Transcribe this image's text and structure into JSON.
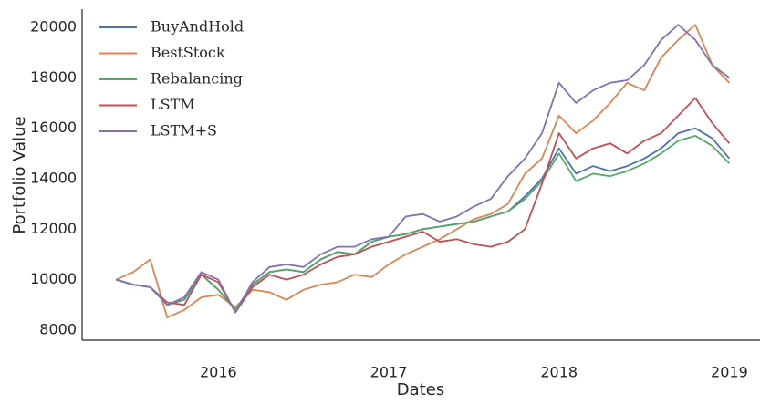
{
  "chart_data": {
    "type": "line",
    "xlabel": "Dates",
    "ylabel": "Portfolio Value",
    "x": [
      2015.4,
      2015.5,
      2015.6,
      2015.7,
      2015.8,
      2015.9,
      2016.0,
      2016.1,
      2016.2,
      2016.3,
      2016.4,
      2016.5,
      2016.6,
      2016.7,
      2016.8,
      2016.9,
      2017.0,
      2017.1,
      2017.2,
      2017.3,
      2017.4,
      2017.5,
      2017.6,
      2017.7,
      2017.8,
      2017.9,
      2018.0,
      2018.1,
      2018.2,
      2018.3,
      2018.4,
      2018.5,
      2018.6,
      2018.7,
      2018.8,
      2018.9,
      2019.0
    ],
    "series": [
      {
        "name": "BuyAndHold",
        "color": "#4c72b0",
        "values": [
          10000,
          9800,
          9700,
          9000,
          9200,
          10200,
          9600,
          8800,
          9800,
          10300,
          10400,
          10300,
          10800,
          11100,
          11000,
          11500,
          11700,
          11800,
          12000,
          12100,
          12200,
          12300,
          12500,
          12700,
          13300,
          14000,
          15200,
          14200,
          14500,
          14300,
          14500,
          14800,
          15200,
          15800,
          16000,
          15600,
          14800
        ]
      },
      {
        "name": "BestStock",
        "color": "#dd8452",
        "values": [
          10000,
          10300,
          10800,
          8500,
          8800,
          9300,
          9400,
          8900,
          9600,
          9500,
          9200,
          9600,
          9800,
          9900,
          10200,
          10100,
          10600,
          11000,
          11300,
          11600,
          12000,
          12400,
          12600,
          13000,
          14200,
          14800,
          16500,
          15800,
          16300,
          17000,
          17800,
          17500,
          18800,
          19500,
          20100,
          18500,
          17800
        ]
      },
      {
        "name": "Rebalancing",
        "color": "#55a868",
        "values": [
          10000,
          9800,
          9700,
          9000,
          9200,
          10200,
          9600,
          8800,
          9800,
          10300,
          10400,
          10300,
          10800,
          11100,
          11000,
          11500,
          11700,
          11800,
          12000,
          12100,
          12200,
          12300,
          12500,
          12700,
          13200,
          13900,
          15000,
          13900,
          14200,
          14100,
          14300,
          14600,
          15000,
          15500,
          15700,
          15300,
          14600
        ]
      },
      {
        "name": "LSTM",
        "color": "#c44e52",
        "values": [
          10000,
          9800,
          9700,
          9100,
          9000,
          10200,
          9900,
          8700,
          9700,
          10200,
          10000,
          10200,
          10600,
          10900,
          11000,
          11300,
          11500,
          11700,
          11900,
          11500,
          11600,
          11400,
          11300,
          11500,
          12000,
          13800,
          15800,
          14800,
          15200,
          15400,
          15000,
          15500,
          15800,
          16500,
          17200,
          16200,
          15400
        ]
      },
      {
        "name": "LSTM+S",
        "color": "#8172b3",
        "values": [
          10000,
          9800,
          9700,
          9000,
          9300,
          10300,
          10000,
          8700,
          9900,
          10500,
          10600,
          10500,
          11000,
          11300,
          11300,
          11600,
          11700,
          12500,
          12600,
          12300,
          12500,
          12900,
          13200,
          14100,
          14800,
          15800,
          17800,
          17000,
          17500,
          17800,
          17900,
          18500,
          19500,
          20100,
          19500,
          18500,
          18000
        ]
      }
    ],
    "xlim": [
      2015.2,
      2019.18
    ],
    "xticks": [
      2016,
      2017,
      2018,
      2019
    ],
    "ylim": [
      7600,
      20720
    ],
    "yticks": [
      8000,
      10000,
      12000,
      14000,
      16000,
      18000,
      20000
    ],
    "legend": "upper left"
  }
}
